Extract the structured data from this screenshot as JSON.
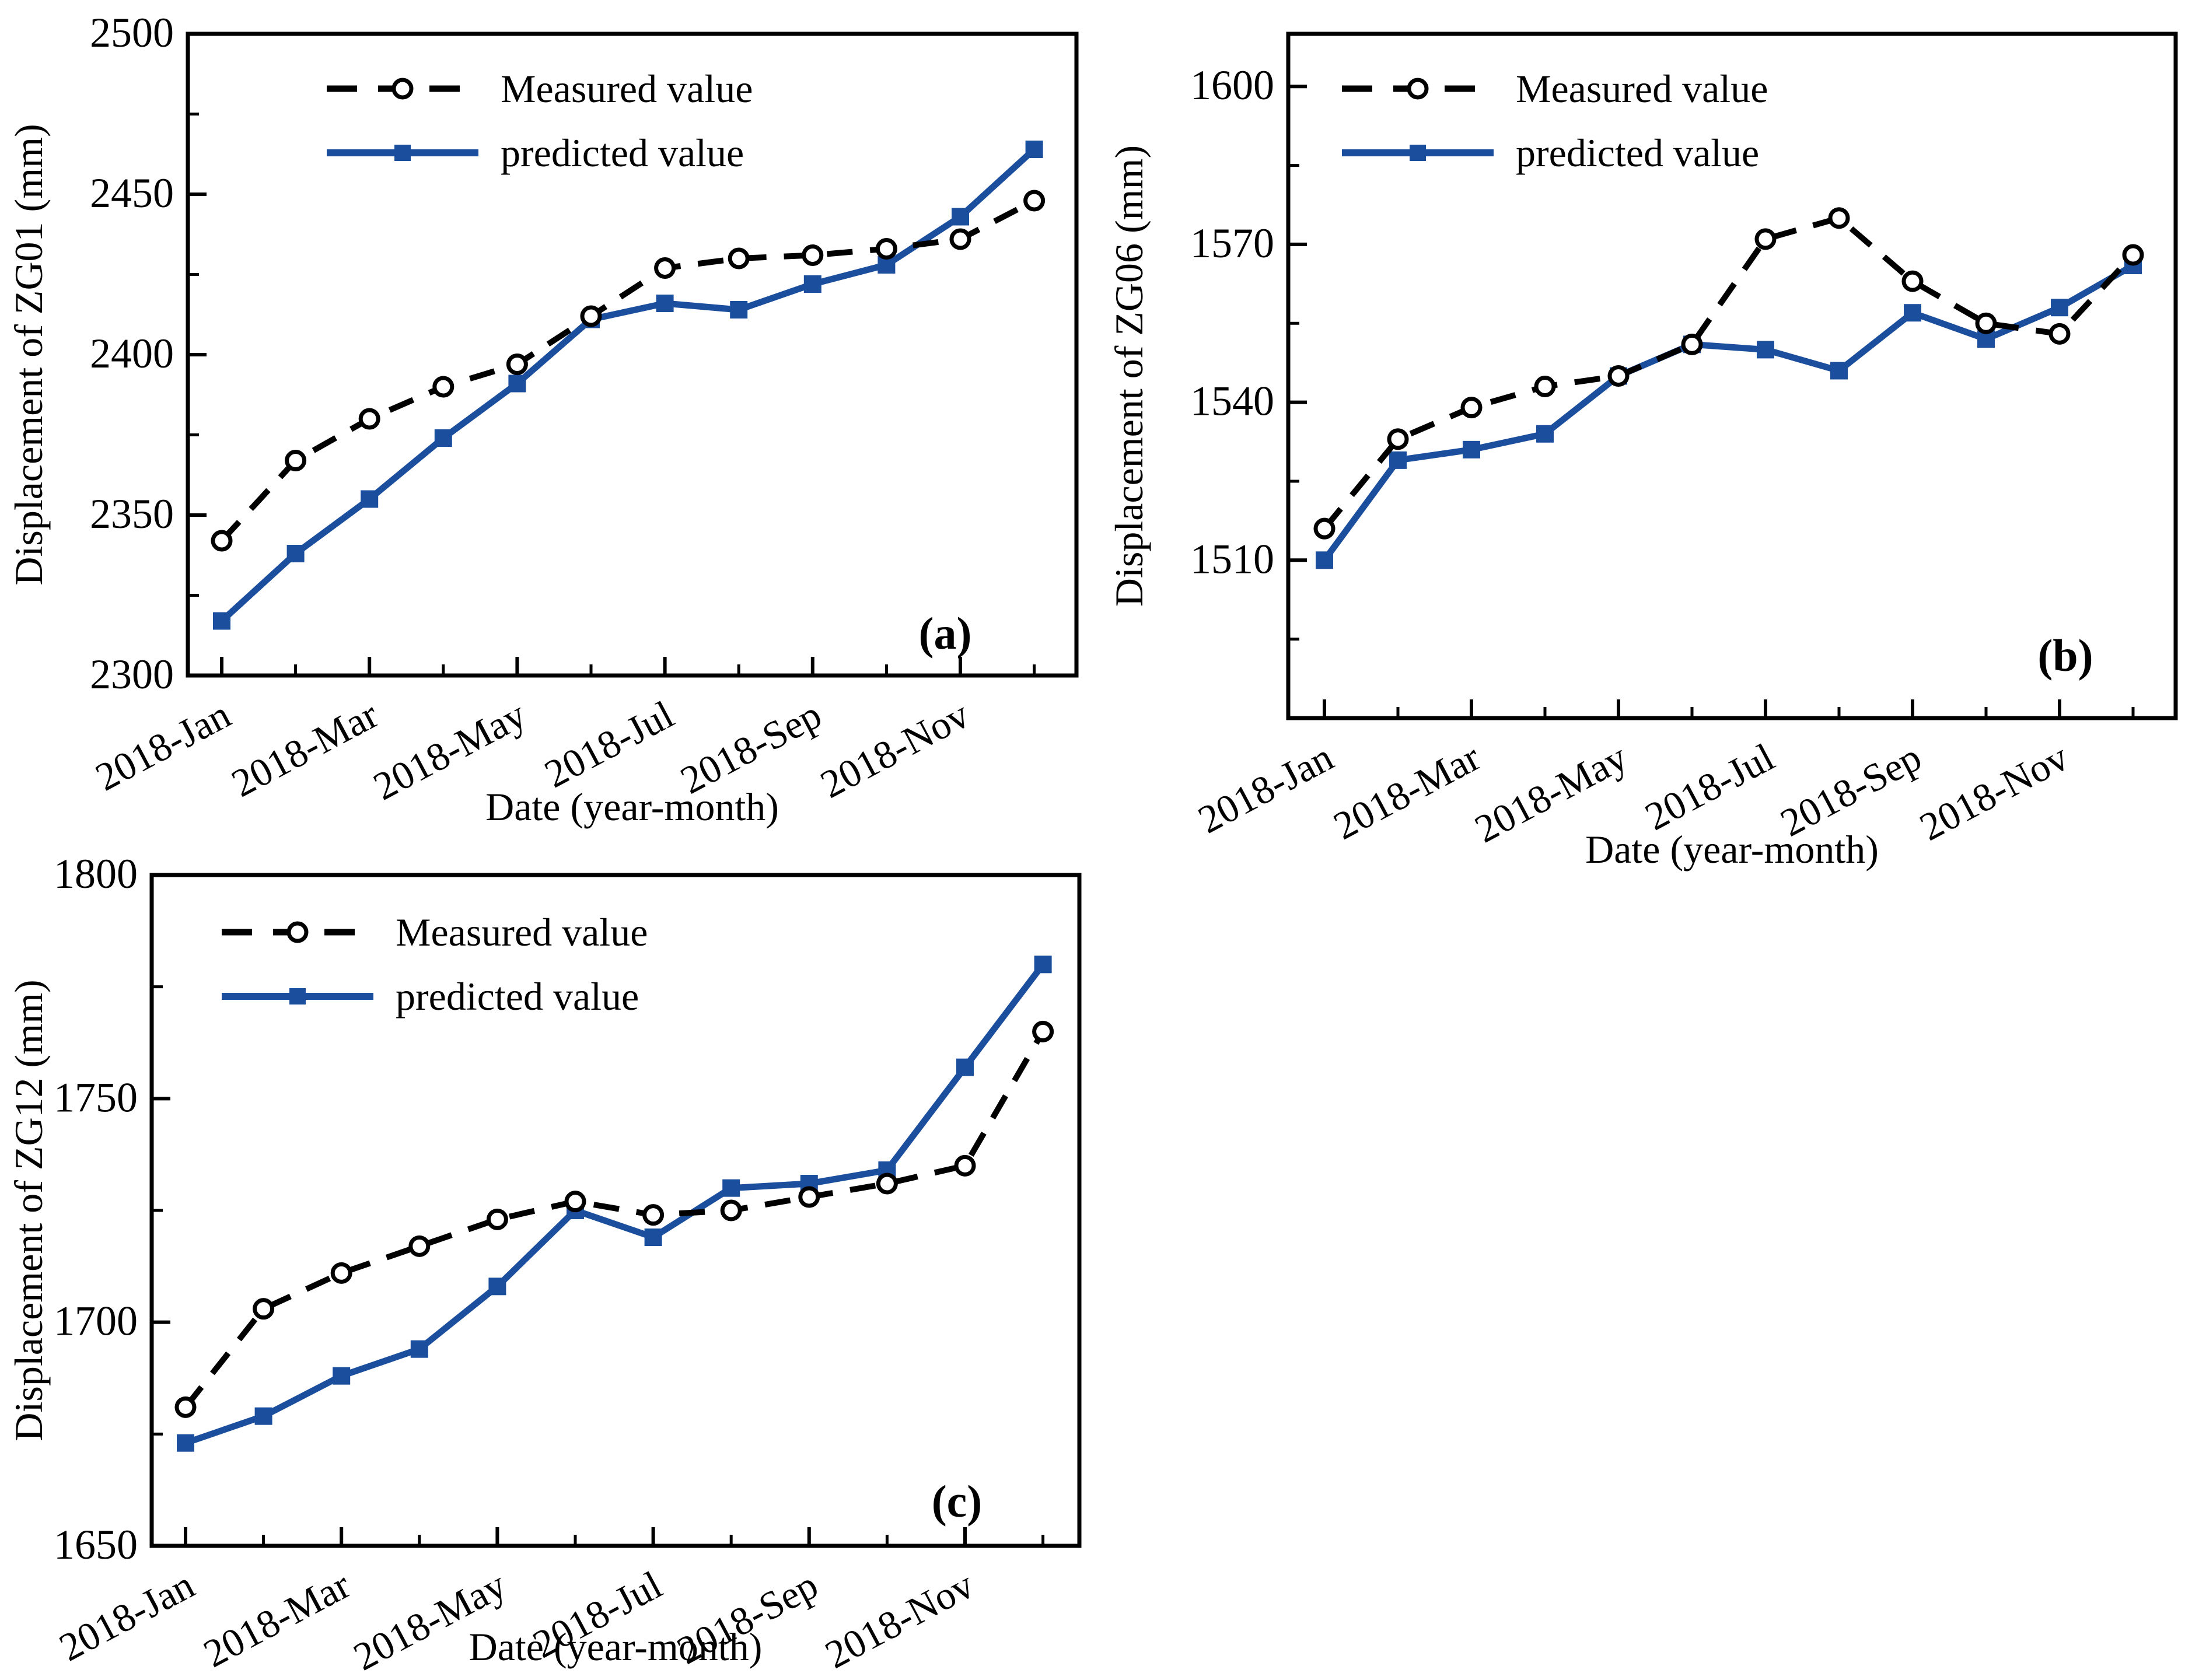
{
  "figure": {
    "background": "#ffffff",
    "panels": [
      "(a)",
      "(b)",
      "(c)"
    ]
  },
  "colors": {
    "measured": "#000000",
    "predicted": "#1b4f9e",
    "frame": "#000000",
    "marker_fill_open": "#ffffff"
  },
  "chart_data": [
    {
      "type": "line",
      "panel_label": "(a)",
      "ylabel": "Displacement of ZG01 (mm)",
      "xlabel": "Date (year-month)",
      "ylim": [
        2300,
        2500
      ],
      "yticks": [
        2300,
        2350,
        2400,
        2450,
        2500
      ],
      "grid": false,
      "legend_position": "top-left",
      "x": [
        "2018-Jan",
        "2018-Feb",
        "2018-Mar",
        "2018-Apr",
        "2018-May",
        "2018-Jun",
        "2018-Jul",
        "2018-Aug",
        "2018-Sep",
        "2018-Oct",
        "2018-Nov",
        "2018-Dec"
      ],
      "xtick_labels": [
        "2018-Jan",
        "2018-Mar",
        "2018-May",
        "2018-Jul",
        "2018-Sep",
        "2018-Nov"
      ],
      "series": [
        {
          "name": "Measured value",
          "style": "dashed",
          "marker": "circle-open",
          "color": "#000000",
          "values": [
            2342,
            2367,
            2380,
            2390,
            2397,
            2412,
            2427,
            2430,
            2431,
            2433,
            2436,
            2448
          ]
        },
        {
          "name": "predicted value",
          "style": "solid",
          "marker": "square-filled",
          "color": "#1b4f9e",
          "values": [
            2317,
            2338,
            2355,
            2374,
            2391,
            2411,
            2416,
            2414,
            2422,
            2428,
            2443,
            2464
          ]
        }
      ]
    },
    {
      "type": "line",
      "panel_label": "(b)",
      "ylabel": "Displacement of ZG06 (mm)",
      "xlabel": "Date (year-month)",
      "ylim": [
        1480,
        1610
      ],
      "yticks": [
        1510,
        1540,
        1570,
        1600
      ],
      "grid": false,
      "legend_position": "top-left",
      "x": [
        "2018-Jan",
        "2018-Feb",
        "2018-Mar",
        "2018-Apr",
        "2018-May",
        "2018-Jun",
        "2018-Jul",
        "2018-Aug",
        "2018-Sep",
        "2018-Oct",
        "2018-Nov",
        "2018-Dec"
      ],
      "xtick_labels": [
        "2018-Jan",
        "2018-Mar",
        "2018-May",
        "2018-Jul",
        "2018-Sep",
        "2018-Nov"
      ],
      "series": [
        {
          "name": "Measured value",
          "style": "dashed",
          "marker": "circle-open",
          "color": "#000000",
          "values": [
            1516,
            1533,
            1539,
            1543,
            1545,
            1551,
            1571,
            1575,
            1563,
            1555,
            1553,
            1568
          ]
        },
        {
          "name": "predicted value",
          "style": "solid",
          "marker": "square-filled",
          "color": "#1b4f9e",
          "values": [
            1510,
            1529,
            1531,
            1534,
            1545,
            1551,
            1550,
            1546,
            1557,
            1552,
            1558,
            1566
          ]
        }
      ]
    },
    {
      "type": "line",
      "panel_label": "(c)",
      "ylabel": "Displacement of ZG12 (mm)",
      "xlabel": "Date (year-month)",
      "ylim": [
        1650,
        1800
      ],
      "yticks": [
        1650,
        1700,
        1750,
        1800
      ],
      "grid": false,
      "legend_position": "top-left",
      "x": [
        "2018-Jan",
        "2018-Feb",
        "2018-Mar",
        "2018-Apr",
        "2018-May",
        "2018-Jun",
        "2018-Jul",
        "2018-Aug",
        "2018-Sep",
        "2018-Oct",
        "2018-Nov",
        "2018-Dec"
      ],
      "xtick_labels": [
        "2018-Jan",
        "2018-Mar",
        "2018-May",
        "2018-Jul",
        "2018-Sep",
        "2018-Nov"
      ],
      "series": [
        {
          "name": "Measured value",
          "style": "dashed",
          "marker": "circle-open",
          "color": "#000000",
          "values": [
            1681,
            1703,
            1711,
            1717,
            1723,
            1727,
            1724,
            1725,
            1728,
            1731,
            1735,
            1765
          ]
        },
        {
          "name": "predicted value",
          "style": "solid",
          "marker": "square-filled",
          "color": "#1b4f9e",
          "values": [
            1673,
            1679,
            1688,
            1694,
            1708,
            1725,
            1719,
            1730,
            1731,
            1734,
            1757,
            1780
          ]
        }
      ]
    }
  ]
}
